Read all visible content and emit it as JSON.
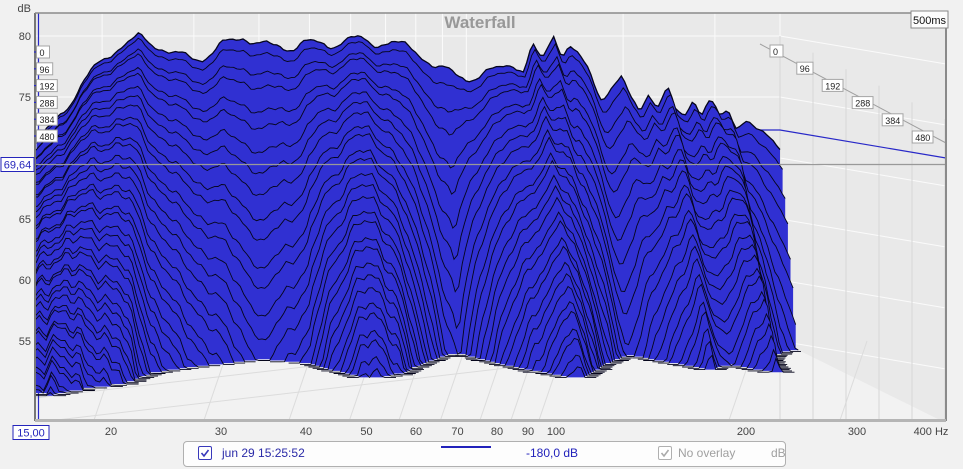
{
  "title": "Waterfall",
  "window_badge": "500ms",
  "axes": {
    "y_unit": "dB",
    "y_ticks": [
      80,
      75,
      65,
      60,
      55
    ],
    "y_cursor_value": "69,64",
    "x_start_value": "15,00",
    "x_ticks": [
      "20",
      "30",
      "40",
      "50",
      "60",
      "70",
      "80",
      "90",
      "100",
      "200",
      "300"
    ],
    "x_last_tick": "400 Hz",
    "time_ticks": [
      "0",
      "96",
      "192",
      "288",
      "384",
      "480"
    ]
  },
  "legend": {
    "measurement": "jun 29 15:25:52",
    "value": "-180,0 dB",
    "overlay": "No overlay",
    "unit": "dB"
  },
  "colors": {
    "surface_fill": "#3030d2",
    "contour": "#06061c",
    "accent_blue": "#2828c8",
    "grid_light": "#fbfbfb",
    "grid_floor": "#dcdcdc",
    "plot_bg": "#e9e9e9",
    "floor_bg": "#f2f2f2",
    "cursor_line": "#999999",
    "title_color": "#989898"
  },
  "chart_data": {
    "type": "area",
    "subtype": "3d-waterfall-spectral-decay",
    "title": "Waterfall",
    "xlabel": "Hz",
    "ylabel": "dB",
    "freq_range_hz": [
      15,
      400
    ],
    "db_axis_range": [
      55,
      80
    ],
    "time_range_ms": [
      0,
      480
    ],
    "time_slice_ticks_ms": [
      0,
      96,
      192,
      288,
      384,
      480
    ],
    "window_ms": 500,
    "db_floor": 55,
    "cursor_db": 69.64,
    "spectrum_t0_db": [
      [
        15,
        71.3
      ],
      [
        16,
        72.6
      ],
      [
        17.5,
        74.8
      ],
      [
        19,
        77.0
      ],
      [
        21,
        78.8
      ],
      [
        23.5,
        79.9
      ],
      [
        25.5,
        79.2
      ],
      [
        28,
        78.4
      ],
      [
        31,
        78.1
      ],
      [
        34,
        79.3
      ],
      [
        37.5,
        79.9
      ],
      [
        41,
        79.3
      ],
      [
        45,
        78.9
      ],
      [
        49,
        79.6
      ],
      [
        54,
        79.1
      ],
      [
        60,
        79.9
      ],
      [
        66,
        79.3
      ],
      [
        72,
        79.6
      ],
      [
        80,
        78.7
      ],
      [
        87,
        77.6
      ],
      [
        93,
        77.0
      ],
      [
        100,
        76.5
      ],
      [
        107,
        76.8
      ],
      [
        115,
        77.3
      ],
      [
        123,
        77.8
      ],
      [
        129,
        77.1
      ],
      [
        134,
        79.2
      ],
      [
        140,
        77.9
      ],
      [
        147,
        80.2
      ],
      [
        153,
        78.5
      ],
      [
        158,
        79.2
      ],
      [
        164,
        78.4
      ],
      [
        172,
        77.0
      ],
      [
        182,
        74.9
      ],
      [
        190,
        75.8
      ],
      [
        198,
        76.6
      ],
      [
        206,
        74.9
      ],
      [
        215,
        74.0
      ],
      [
        224,
        75.4
      ],
      [
        233,
        74.2
      ],
      [
        243,
        75.6
      ],
      [
        252,
        73.9
      ],
      [
        262,
        73.5
      ],
      [
        273,
        75.0
      ],
      [
        283,
        73.6
      ],
      [
        294,
        74.6
      ],
      [
        306,
        73.4
      ],
      [
        318,
        73.9
      ],
      [
        330,
        72.7
      ],
      [
        343,
        73.2
      ],
      [
        357,
        72.3
      ],
      [
        372,
        71.9
      ],
      [
        386,
        71.5
      ],
      [
        400,
        71.1
      ]
    ],
    "decay_death_fraction_of_window": [
      [
        15,
        0.62
      ],
      [
        17,
        0.66
      ],
      [
        19,
        0.6
      ],
      [
        22,
        0.54
      ],
      [
        25,
        0.4
      ],
      [
        28,
        0.34
      ],
      [
        32,
        0.3
      ],
      [
        36,
        0.26
      ],
      [
        40,
        0.23
      ],
      [
        44,
        0.26
      ],
      [
        48,
        0.28
      ],
      [
        53,
        0.38
      ],
      [
        58,
        0.45
      ],
      [
        63,
        0.44
      ],
      [
        68,
        0.4
      ],
      [
        74,
        0.3
      ],
      [
        80,
        0.24
      ],
      [
        86,
        0.18
      ],
      [
        92,
        0.15
      ],
      [
        98,
        0.22
      ],
      [
        104,
        0.28
      ],
      [
        110,
        0.32
      ],
      [
        118,
        0.38
      ],
      [
        126,
        0.42
      ],
      [
        134,
        0.46
      ],
      [
        142,
        0.42
      ],
      [
        150,
        0.36
      ],
      [
        158,
        0.3
      ],
      [
        166,
        0.26
      ],
      [
        175,
        0.22
      ],
      [
        185,
        0.18
      ],
      [
        195,
        0.2
      ],
      [
        205,
        0.24
      ],
      [
        215,
        0.28
      ],
      [
        228,
        0.32
      ],
      [
        240,
        0.36
      ],
      [
        252,
        0.32
      ],
      [
        265,
        0.3
      ],
      [
        278,
        0.32
      ],
      [
        292,
        0.36
      ],
      [
        308,
        0.4
      ],
      [
        325,
        0.26
      ],
      [
        345,
        0.18
      ],
      [
        365,
        0.14
      ],
      [
        385,
        0.12
      ],
      [
        400,
        0.11
      ]
    ]
  }
}
